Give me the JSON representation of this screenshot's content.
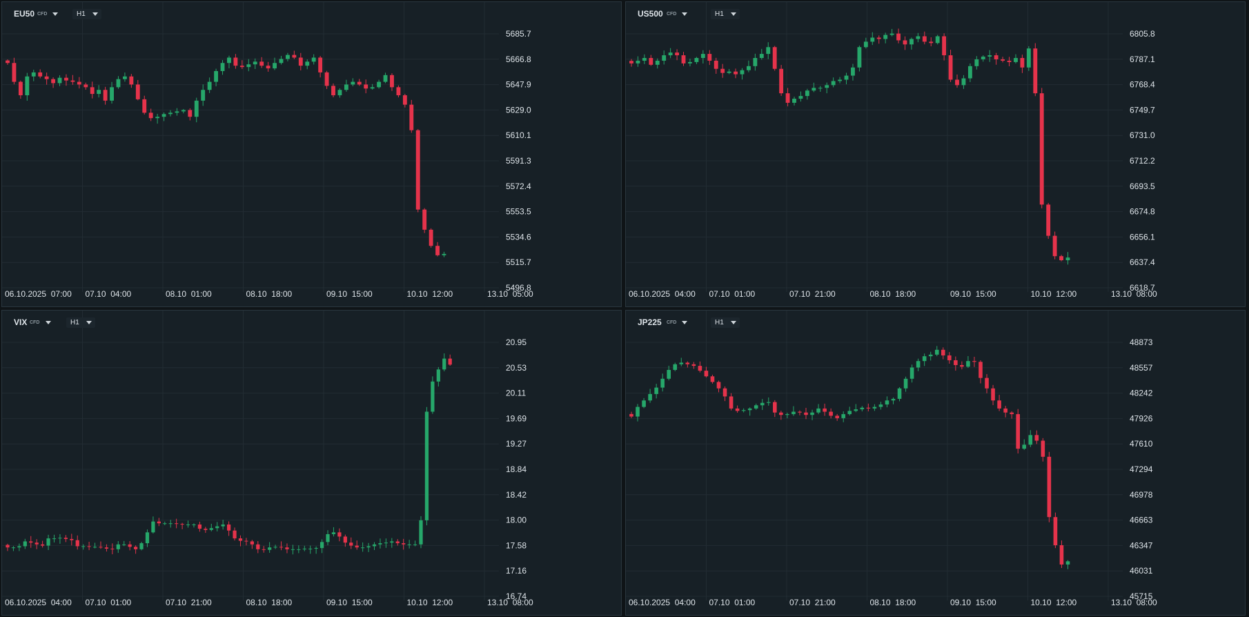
{
  "colors": {
    "background": "#172026",
    "grid": "#222c33",
    "up": "#26a76a",
    "down": "#e5334b",
    "text": "#dfe5ea"
  },
  "chart_data": [
    {
      "type": "candlestick",
      "symbol": "EU50",
      "instrument_type": "CFD",
      "timeframe": "H1",
      "y_ticks": [
        "5685.7",
        "5666.8",
        "5647.9",
        "5629.0",
        "5610.1",
        "5591.3",
        "5572.4",
        "5553.5",
        "5534.6",
        "5515.7",
        "5496.8"
      ],
      "x_ticks": [
        "06.10.2025  07:00",
        "07.10  04:00",
        "08.10  01:00",
        "08.10  18:00",
        "09.10  15:00",
        "10.10  12:00",
        "13.10  05:00"
      ],
      "ylim": [
        5496.8,
        5685.7
      ],
      "close_series": [
        5664,
        5650,
        5640,
        5654,
        5657,
        5654,
        5652,
        5649,
        5653,
        5651,
        5650,
        5648,
        5646,
        5641,
        5644,
        5636,
        5646,
        5652,
        5654,
        5648,
        5637,
        5627,
        5623,
        5624,
        5626,
        5627,
        5628,
        5629,
        5624,
        5636,
        5644,
        5650,
        5658,
        5664,
        5668,
        5662,
        5661,
        5663,
        5665,
        5662,
        5660,
        5664,
        5667,
        5670,
        5668,
        5662,
        5665,
        5668,
        5657,
        5647,
        5640,
        5644,
        5648,
        5650,
        5648,
        5645,
        5646,
        5650,
        5655,
        5646,
        5640,
        5633,
        5614,
        5555,
        5540,
        5528,
        5521,
        5522
      ]
    },
    {
      "type": "candlestick",
      "symbol": "US500",
      "instrument_type": "CFD",
      "timeframe": "H1",
      "y_ticks": [
        "6805.8",
        "6787.1",
        "6768.4",
        "6749.7",
        "6731.0",
        "6712.2",
        "6693.5",
        "6674.8",
        "6656.1",
        "6637.4",
        "6618.7"
      ],
      "x_ticks": [
        "06.10.2025  04:00",
        "07.10  01:00",
        "07.10  21:00",
        "08.10  18:00",
        "09.10  15:00",
        "10.10  12:00",
        "13.10  08:00"
      ],
      "ylim": [
        6618.7,
        6805.8
      ],
      "close_series": [
        6784,
        6786,
        6788,
        6783,
        6786,
        6790,
        6792,
        6790,
        6784,
        6785,
        6788,
        6791,
        6786,
        6780,
        6777,
        6778,
        6776,
        6779,
        6782,
        6788,
        6791,
        6796,
        6780,
        6762,
        6755,
        6758,
        6760,
        6764,
        6766,
        6766,
        6768,
        6771,
        6772,
        6775,
        6781,
        6796,
        6800,
        6803,
        6802,
        6805,
        6806,
        6801,
        6798,
        6802,
        6804,
        6800,
        6799,
        6804,
        6790,
        6772,
        6768,
        6773,
        6782,
        6787,
        6789,
        6790,
        6787,
        6786,
        6785,
        6788,
        6781,
        6795,
        6762,
        6680,
        6657,
        6642,
        6639,
        6641
      ]
    },
    {
      "type": "candlestick",
      "symbol": "VIX",
      "instrument_type": "CFD",
      "timeframe": "H1",
      "y_ticks": [
        "20.95",
        "20.53",
        "20.11",
        "19.69",
        "19.27",
        "18.84",
        "18.42",
        "18.00",
        "17.58",
        "17.16",
        "16.74"
      ],
      "x_ticks": [
        "06.10.2025  04:00",
        "07.10  01:00",
        "07.10  21:00",
        "08.10  18:00",
        "09.10  15:00",
        "10.10  12:00",
        "13.10  08:00"
      ],
      "ylim": [
        16.74,
        20.95
      ],
      "close_series": [
        17.55,
        17.55,
        17.57,
        17.65,
        17.63,
        17.6,
        17.58,
        17.7,
        17.7,
        17.71,
        17.69,
        17.67,
        17.57,
        17.57,
        17.56,
        17.56,
        17.55,
        17.53,
        17.52,
        17.6,
        17.6,
        17.56,
        17.52,
        17.62,
        17.8,
        17.98,
        17.95,
        17.95,
        17.95,
        17.94,
        17.93,
        17.93,
        17.93,
        17.86,
        17.84,
        17.87,
        17.9,
        17.93,
        17.83,
        17.7,
        17.66,
        17.65,
        17.6,
        17.52,
        17.51,
        17.55,
        17.56,
        17.55,
        17.52,
        17.52,
        17.52,
        17.53,
        17.53,
        17.54,
        17.64,
        17.77,
        17.8,
        17.73,
        17.63,
        17.58,
        17.55,
        17.55,
        17.57,
        17.6,
        17.62,
        17.63,
        17.65,
        17.62,
        17.6,
        17.6,
        17.6,
        18.0,
        19.8,
        20.3,
        20.5,
        20.68,
        20.58
      ]
    },
    {
      "type": "candlestick",
      "symbol": "JP225",
      "instrument_type": "CFD",
      "timeframe": "H1",
      "y_ticks": [
        "48873",
        "48557",
        "48242",
        "47926",
        "47610",
        "47294",
        "46978",
        "46663",
        "46347",
        "46031",
        "45715"
      ],
      "x_ticks": [
        "06.10.2025  04:00",
        "07.10  01:00",
        "07.10  21:00",
        "08.10  18:00",
        "09.10  15:00",
        "10.10  12:00",
        "13.10  08:00"
      ],
      "ylim": [
        45715,
        48873
      ],
      "close_series": [
        47950,
        48070,
        48150,
        48230,
        48310,
        48420,
        48530,
        48600,
        48620,
        48600,
        48580,
        48520,
        48450,
        48380,
        48300,
        48200,
        48050,
        48020,
        48030,
        48050,
        48090,
        48120,
        48130,
        48000,
        47970,
        47980,
        48010,
        48000,
        47970,
        48000,
        48050,
        48010,
        47960,
        47930,
        47980,
        48020,
        48040,
        48060,
        48050,
        48070,
        48100,
        48150,
        48170,
        48300,
        48420,
        48560,
        48640,
        48700,
        48720,
        48780,
        48710,
        48650,
        48590,
        48570,
        48640,
        48630,
        48430,
        48300,
        48150,
        48050,
        48000,
        47980,
        47550,
        47600,
        47720,
        47650,
        47450,
        46700,
        46350,
        46110,
        46150
      ]
    }
  ]
}
